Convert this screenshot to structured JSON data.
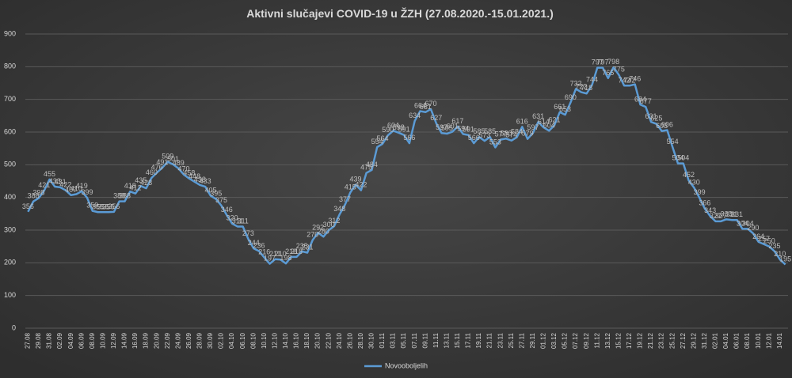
{
  "chart_data": {
    "type": "line",
    "title": "Aktivni  slučajevi  COVID-19  u  ŽZH (27.08.2020.-15.01.2021.)",
    "categories": [
      "27.08",
      null,
      "29.08",
      null,
      "31.08",
      null,
      "02.09",
      null,
      "04.09",
      null,
      "06.09",
      null,
      "08.09",
      null,
      "10.09",
      null,
      "12.09",
      null,
      "14.09",
      null,
      "16.09",
      null,
      "18.09",
      null,
      "20.09",
      null,
      "22.09",
      null,
      "24.09",
      null,
      "26.09",
      null,
      "28.09",
      null,
      "30.09",
      null,
      "02.10",
      null,
      "04.10",
      null,
      "06.10",
      null,
      "08.10",
      null,
      "10.10",
      null,
      "12.10",
      null,
      "14.10",
      null,
      "16.10",
      null,
      "18.10",
      null,
      "20.10",
      null,
      "22.10",
      null,
      "24.10",
      null,
      "26.10",
      null,
      "28.10",
      null,
      "30.10",
      null,
      "01.11",
      null,
      "03.11",
      null,
      "05.11",
      null,
      "07.11",
      null,
      "09.11",
      null,
      "11.11",
      null,
      "13.11",
      null,
      "15.11",
      null,
      "17.11",
      null,
      "19.11",
      null,
      "21.11",
      null,
      "23.11",
      null,
      "25.11",
      null,
      "27.11",
      null,
      "29.11",
      null,
      "01.12",
      null,
      "03.12",
      null,
      "05.12",
      null,
      "07.12",
      null,
      "09.12",
      null,
      "11.12",
      null,
      "13.12",
      null,
      "15.12",
      null,
      "17.12",
      null,
      "19.12",
      null,
      "21.12",
      null,
      "23.12",
      null,
      "25.12",
      null,
      "27.12",
      null,
      "29.12",
      null,
      "31.12",
      null,
      "02.01",
      null,
      "04.01",
      null,
      "06.01",
      null,
      "08.01",
      null,
      "10.01",
      null,
      "12.01",
      null,
      "14.01",
      null
    ],
    "series": [
      {
        "name": "Novooboljelih",
        "color": "#5b9bd5",
        "values": [
          356,
          388,
          398,
          421,
          455,
          433,
          431,
          422,
          407,
          410,
          419,
          399,
          359,
          355,
          355,
          355,
          356,
          388,
          388,
          418,
          412,
          435,
          428,
          460,
          476,
          491,
          509,
          501,
          489,
          470,
          458,
          448,
          438,
          433,
          405,
          395,
          375,
          346,
          320,
          311,
          311,
          273,
          244,
          236,
          216,
          197,
          211,
          210,
          198,
          218,
          218,
          235,
          231,
          270,
          292,
          280,
          300,
          312,
          348,
          377,
          415,
          439,
          422,
          475,
          484,
          554,
          564,
          590,
          604,
          598,
          591,
          566,
          634,
          664,
          661,
          670,
          627,
          597,
          595,
          601,
          617,
          594,
          591,
          566,
          585,
          573,
          585,
          553,
          577,
          580,
          574,
          584,
          616,
          579,
          597,
          631,
          614,
          604,
          621,
          661,
          653,
          690,
          732,
          722,
          718,
          744,
          797,
          797,
          765,
          798,
          775,
          742,
          742,
          746,
          684,
          677,
          631,
          625,
          603,
          606,
          554,
          504,
          504,
          452,
          430,
          399,
          366,
          343,
          327,
          327,
          333,
          331,
          331,
          304,
          304,
          290,
          264,
          257,
          250,
          235,
          210,
          195
        ]
      }
    ],
    "ylim": [
      0,
      900
    ],
    "yticks": [
      0,
      100,
      200,
      300,
      400,
      500,
      600,
      700,
      800,
      900
    ],
    "grid": true,
    "legend": "bottom"
  }
}
